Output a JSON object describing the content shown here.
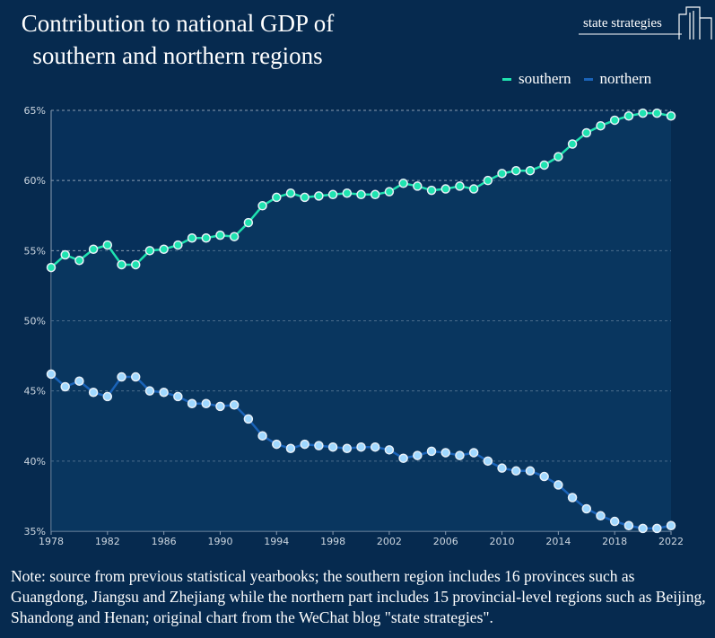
{
  "title_line1": "Contribution to national GDP of",
  "title_line2": "southern and northern regions",
  "logo_text": "state strategies",
  "note": "Note: source from previous statistical yearbooks; the southern region includes 16 provinces such as Guangdong, Jiangsu and Zhejiang while the northern part includes 15 provincial-level regions such as Beijing, Shandong and Henan; original chart from the WeChat blog \"state strategies\".",
  "colors": {
    "southern": "#1fe3b0",
    "northern": "#1a63b8",
    "northern_marker": "#9fd8ff",
    "background": "#062a4f"
  },
  "chart_data": {
    "type": "line",
    "title": "Contribution to national GDP of southern and northern regions",
    "x": [
      1978,
      1979,
      1980,
      1981,
      1982,
      1983,
      1984,
      1985,
      1986,
      1987,
      1988,
      1989,
      1990,
      1991,
      1992,
      1993,
      1994,
      1995,
      1996,
      1997,
      1998,
      1999,
      2000,
      2001,
      2002,
      2003,
      2004,
      2005,
      2006,
      2007,
      2008,
      2009,
      2010,
      2011,
      2012,
      2013,
      2014,
      2015,
      2016,
      2017,
      2018,
      2019,
      2020,
      2021,
      2022
    ],
    "xticks": [
      "1978",
      "1982",
      "1986",
      "1990",
      "1994",
      "1998",
      "2002",
      "2006",
      "2010",
      "2014",
      "2018",
      "2022"
    ],
    "yticks": [
      "35%",
      "40%",
      "45%",
      "50%",
      "55%",
      "60%",
      "65%"
    ],
    "ylim": [
      35,
      65
    ],
    "grid": true,
    "legend": "top-right",
    "series": [
      {
        "name": "southern",
        "values": [
          53.8,
          54.7,
          54.3,
          55.1,
          55.4,
          54.0,
          54.0,
          55.0,
          55.1,
          55.4,
          55.9,
          55.9,
          56.1,
          56.0,
          57.0,
          58.2,
          58.8,
          59.1,
          58.8,
          58.9,
          59.0,
          59.1,
          59.0,
          59.0,
          59.2,
          59.8,
          59.6,
          59.3,
          59.4,
          59.6,
          59.4,
          60.0,
          60.5,
          60.7,
          60.7,
          61.1,
          61.7,
          62.6,
          63.4,
          63.9,
          64.3,
          64.6,
          64.8,
          64.8,
          64.6
        ]
      },
      {
        "name": "northern",
        "values": [
          46.2,
          45.3,
          45.7,
          44.9,
          44.6,
          46.0,
          46.0,
          45.0,
          44.9,
          44.6,
          44.1,
          44.1,
          43.9,
          44.0,
          43.0,
          41.8,
          41.2,
          40.9,
          41.2,
          41.1,
          41.0,
          40.9,
          41.0,
          41.0,
          40.8,
          40.2,
          40.4,
          40.7,
          40.6,
          40.4,
          40.6,
          40.0,
          39.5,
          39.3,
          39.3,
          38.9,
          38.3,
          37.4,
          36.6,
          36.1,
          35.7,
          35.4,
          35.2,
          35.2,
          35.4
        ]
      }
    ]
  }
}
